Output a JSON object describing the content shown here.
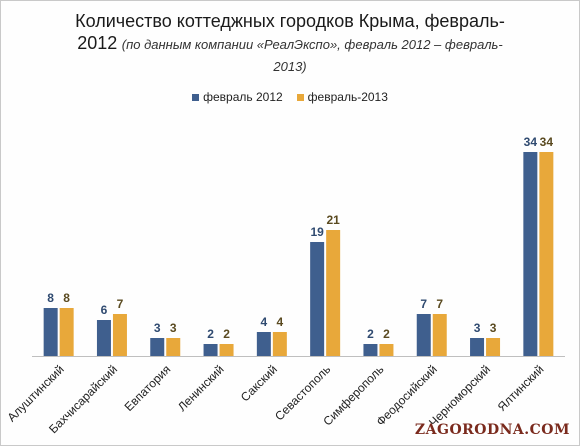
{
  "header": {
    "title_main": "Количество коттеджных городков Крыма, февраль-",
    "title_main2": "2012",
    "title_sub": "(по данным компании «РеалЭкспо», февраль 2012 – февраль-",
    "title_sub2": "2013)"
  },
  "colors": {
    "series1": "#3f5f8e",
    "series2": "#e8a83a",
    "axis": "#bfbfbf"
  },
  "watermark": "ZAGORODNA.COM",
  "chart_data": {
    "type": "bar",
    "categories": [
      "Алуштинский",
      "Бахчисарайский",
      "Евпатория",
      "Ленинский",
      "Сакский",
      "Севастополь",
      "Симферополь",
      "Феодосийский",
      "Черноморский",
      "Ялтинский"
    ],
    "series": [
      {
        "name": "февраль 2012",
        "values": [
          8,
          6,
          3,
          2,
          4,
          19,
          2,
          7,
          3,
          34
        ]
      },
      {
        "name": "февраль-2013",
        "values": [
          8,
          7,
          3,
          2,
          4,
          21,
          2,
          7,
          3,
          34
        ]
      }
    ],
    "ylim": [
      0,
      40
    ],
    "grid": false,
    "legend_position": "top"
  }
}
